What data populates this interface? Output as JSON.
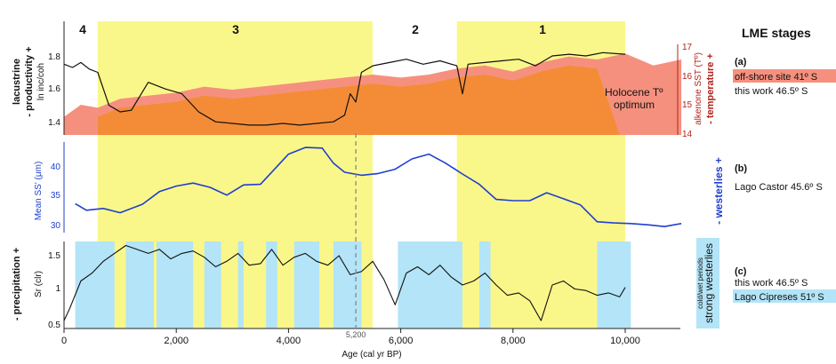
{
  "colors": {
    "yellow": "#faf78a",
    "cyan": "#b3e4f7",
    "salmon": "#f6907e",
    "orange": "#f48c37",
    "blue": "#1f3fd0",
    "darkred": "#b1231b",
    "black": "#111111",
    "dashed_marker": "#888888"
  },
  "stages": {
    "title": "LME stages",
    "labels": [
      "4",
      "3",
      "2",
      "1"
    ]
  },
  "x_axis": {
    "label": "Age (cal yr BP)",
    "ticks": [
      "0",
      "2,000",
      "4,000",
      "6,000",
      "8,000",
      "10,000"
    ],
    "tick_values": [
      0,
      2000,
      4000,
      6000,
      8000,
      10000
    ],
    "marker_value": 5200,
    "marker_label": "5,200"
  },
  "panel_a": {
    "letter": "(a)",
    "left_label_1": "lacustrine",
    "left_label_2": "- productivity +",
    "left_label_3": "ln inc/coh",
    "left_ticks": [
      "1.8",
      "1.6",
      "1.4"
    ],
    "right_label_1": "alkenone  SST (Tº)",
    "right_label_2": "- temperature +",
    "right_ticks": [
      "17",
      "16",
      "15",
      "14"
    ],
    "annotation_1": "Holocene Tº",
    "annotation_2": "optimum",
    "legend_1": "off-shore site 41º S",
    "legend_2": "this work 46.5º S"
  },
  "panel_b": {
    "letter": "(b)",
    "left_label": "Mean SS' (μm)",
    "left_ticks": [
      "40",
      "35",
      "30"
    ],
    "right_label": "- westerlies +",
    "legend_1": "Lago Castor 45.6º S"
  },
  "panel_c": {
    "letter": "(c)",
    "left_label_1": "- precipitation +",
    "left_label_2": "Sr (clr)",
    "left_ticks": [
      "1.5",
      "1",
      "0.5"
    ],
    "right_label_1": "strong westerlies",
    "right_label_2": "cold/wet periods",
    "legend_1": "this work 46.5º S",
    "legend_2": "Lago Cipreses 51º S"
  },
  "chart_data": [
    {
      "type": "line",
      "panel": "a",
      "xlabel": "Age (cal yr BP)",
      "ylabel": "ln inc/coh",
      "ylim": [
        1.3,
        1.85
      ],
      "y2label": "alkenone SST (Tº)",
      "y2lim": [
        14,
        17
      ],
      "stage_bands": [
        {
          "name": "4",
          "range": [
            0,
            600
          ]
        },
        {
          "name": "3",
          "range": [
            600,
            5500
          ]
        },
        {
          "name": "2",
          "range": [
            5500,
            7000
          ]
        },
        {
          "name": "1",
          "range": [
            7000,
            10000
          ]
        }
      ],
      "highlight_bands": [
        [
          600,
          5500
        ],
        [
          7000,
          10000
        ]
      ],
      "series": [
        {
          "name": "this work 46.5º S",
          "x": [
            0,
            150,
            300,
            450,
            600,
            800,
            1000,
            1200,
            1500,
            1800,
            2100,
            2400,
            2700,
            3000,
            3300,
            3600,
            3900,
            4200,
            4500,
            4800,
            5000,
            5100,
            5200,
            5300,
            5500,
            5800,
            6100,
            6400,
            6700,
            7000,
            7100,
            7200,
            7500,
            7800,
            8100,
            8400,
            8700,
            9000,
            9300,
            9600,
            10000
          ],
          "y": [
            1.73,
            1.71,
            1.74,
            1.7,
            1.68,
            1.48,
            1.44,
            1.45,
            1.62,
            1.58,
            1.55,
            1.44,
            1.38,
            1.37,
            1.36,
            1.36,
            1.37,
            1.36,
            1.37,
            1.38,
            1.42,
            1.55,
            1.5,
            1.68,
            1.72,
            1.74,
            1.76,
            1.73,
            1.75,
            1.72,
            1.55,
            1.73,
            1.74,
            1.75,
            1.76,
            1.72,
            1.78,
            1.79,
            1.78,
            1.8,
            1.79
          ]
        },
        {
          "name": "off-shore site 41º S",
          "axis": "right",
          "x": [
            0,
            300,
            600,
            1000,
            1500,
            2000,
            2500,
            3000,
            3500,
            4000,
            4500,
            5000,
            5500,
            6000,
            6500,
            7000,
            7500,
            8000,
            8500,
            9000,
            9500,
            10000,
            10500,
            11000
          ],
          "y": [
            14.6,
            15.0,
            14.9,
            15.2,
            15.3,
            15.4,
            15.6,
            15.5,
            15.6,
            15.7,
            15.8,
            15.9,
            16.0,
            15.9,
            16.0,
            16.2,
            16.3,
            16.1,
            16.4,
            16.6,
            16.5,
            16.7,
            16.3,
            16.5
          ]
        }
      ]
    },
    {
      "type": "line",
      "panel": "b",
      "xlabel": "Age (cal yr BP)",
      "ylabel": "Mean SS' (μm)",
      "ylim": [
        29,
        44
      ],
      "series": [
        {
          "name": "Lago Castor 45.6º S",
          "x": [
            200,
            400,
            700,
            1000,
            1400,
            1700,
            2000,
            2300,
            2600,
            2900,
            3200,
            3500,
            3800,
            4000,
            4300,
            4600,
            4800,
            5000,
            5300,
            5600,
            5900,
            6200,
            6500,
            6800,
            7100,
            7400,
            7700,
            8000,
            8300,
            8600,
            8900,
            9200,
            9500,
            9800,
            10100,
            10400,
            10700,
            11000
          ],
          "y": [
            33.8,
            32.7,
            33.0,
            32.3,
            33.7,
            35.8,
            36.7,
            37.2,
            36.5,
            35.2,
            36.9,
            37.0,
            40.0,
            42.0,
            43.1,
            43.0,
            40.5,
            39.0,
            38.5,
            38.8,
            39.5,
            41.2,
            42.0,
            40.5,
            38.7,
            37.0,
            34.5,
            34.3,
            34.3,
            35.6,
            34.6,
            33.6,
            30.8,
            30.6,
            30.5,
            30.3,
            30.0,
            30.5
          ]
        }
      ]
    },
    {
      "type": "line",
      "panel": "c",
      "xlabel": "Age (cal yr BP)",
      "ylabel": "Sr (clr)",
      "ylim": [
        0.5,
        1.6
      ],
      "highlight_bands": [
        [
          200,
          900
        ],
        [
          1100,
          1600
        ],
        [
          1650,
          2300
        ],
        [
          2500,
          2800
        ],
        [
          3100,
          3200
        ],
        [
          3600,
          3800
        ],
        [
          4100,
          4550
        ],
        [
          4800,
          5300
        ],
        [
          5950,
          7100
        ],
        [
          7400,
          7600
        ],
        [
          9500,
          10100
        ]
      ],
      "series": [
        {
          "name": "this work 46.5º S",
          "x": [
            0,
            100,
            300,
            500,
            700,
            900,
            1100,
            1300,
            1500,
            1700,
            1900,
            2100,
            2300,
            2500,
            2700,
            2900,
            3100,
            3300,
            3500,
            3700,
            3900,
            4100,
            4300,
            4500,
            4700,
            4900,
            5100,
            5300,
            5500,
            5700,
            5900,
            6100,
            6300,
            6500,
            6700,
            6900,
            7100,
            7300,
            7500,
            7700,
            7900,
            8100,
            8300,
            8500,
            8700,
            8900,
            9100,
            9300,
            9500,
            9700,
            9900,
            10000
          ],
          "y": [
            0.6,
            0.75,
            1.1,
            1.2,
            1.35,
            1.45,
            1.55,
            1.5,
            1.45,
            1.5,
            1.38,
            1.45,
            1.48,
            1.4,
            1.28,
            1.35,
            1.45,
            1.3,
            1.32,
            1.5,
            1.3,
            1.4,
            1.45,
            1.35,
            1.3,
            1.42,
            1.18,
            1.22,
            1.35,
            1.12,
            0.8,
            1.2,
            1.28,
            1.18,
            1.3,
            1.15,
            1.05,
            1.1,
            1.2,
            1.05,
            0.92,
            0.95,
            0.85,
            0.6,
            1.05,
            1.1,
            1.0,
            0.98,
            0.92,
            0.95,
            0.9,
            1.02
          ]
        }
      ]
    }
  ]
}
